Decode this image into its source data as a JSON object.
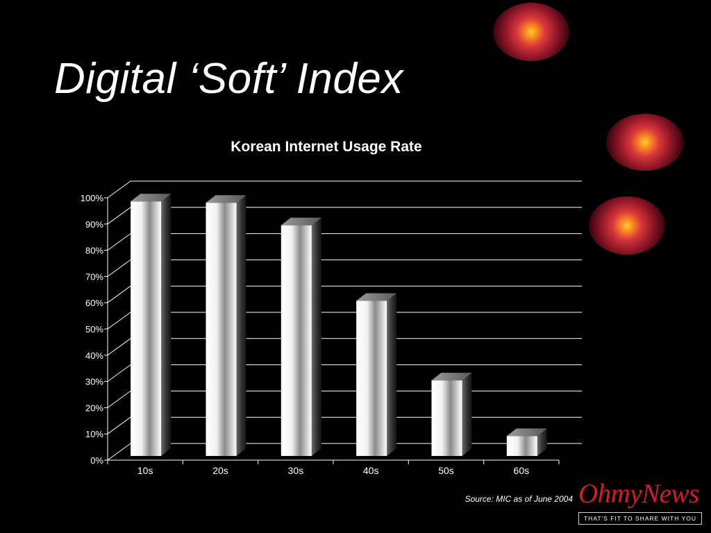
{
  "slide": {
    "title": "Digital ‘Soft’ Index",
    "source": "Source: MIC as of June 2004"
  },
  "logo": {
    "wordmark": "OhmyNews",
    "tagline": "THAT'S FIT TO SHARE WITH YOU"
  },
  "colors": {
    "background": "#000000",
    "logo_red": "#d51b23",
    "orb_core": "#ff9a20",
    "orb_glow": "#d8363a"
  },
  "chart_data": {
    "type": "bar",
    "title": "Korean Internet Usage Rate",
    "categories": [
      "10s",
      "20s",
      "30s",
      "40s",
      "50s",
      "60s"
    ],
    "values": [
      96,
      95.5,
      87,
      58.5,
      28.5,
      7.5
    ],
    "yticks": [
      "0%",
      "10%",
      "20%",
      "30%",
      "40%",
      "50%",
      "60%",
      "70%",
      "80%",
      "90%",
      "100%"
    ],
    "ylim": [
      0,
      100
    ],
    "grid": true,
    "style": "3d"
  }
}
